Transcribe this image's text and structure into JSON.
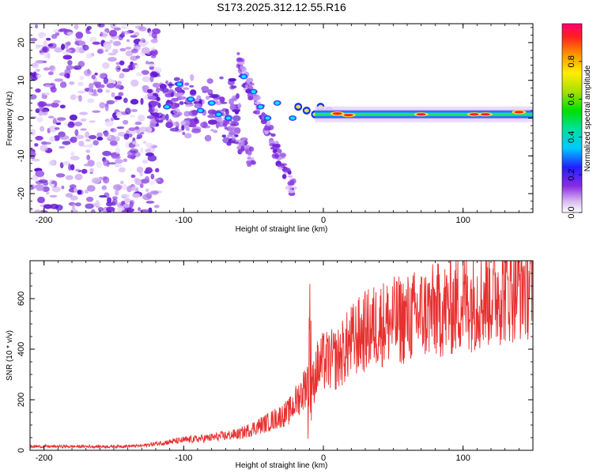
{
  "title": "S173.2025.312.12.55.R16",
  "chart_data": [
    {
      "type": "heatmap",
      "title": "S173.2025.312.12.55.R16",
      "xlabel": "Height of straight line (km)",
      "ylabel": "Frequency (Hz)",
      "xlim": [
        -210,
        150
      ],
      "ylim": [
        -25,
        25
      ],
      "xticks": [
        "-200",
        "-100",
        "0",
        "100"
      ],
      "yticks": [
        "-20",
        "-10",
        "0",
        "10",
        "20"
      ],
      "colorbar": {
        "label": "Normalized spectral amplitude",
        "range": [
          0,
          1
        ],
        "ticks": [
          "0.0",
          "0.2",
          "0.4",
          "0.6",
          "0.8"
        ]
      },
      "features": [
        {
          "name": "noise",
          "x_range": [
            -210,
            -125
          ],
          "freq_range": [
            -25,
            25
          ]
        },
        {
          "name": "clusters",
          "x_range": [
            -125,
            -20
          ],
          "freq_range": [
            -20,
            18
          ]
        },
        {
          "name": "dominant-band",
          "x_range": [
            -20,
            150
          ],
          "freq": 1
        }
      ]
    },
    {
      "type": "line",
      "xlabel": "Height of straight line (km)",
      "ylabel": "SNR (10 * v/v)",
      "xlim": [
        -210,
        150
      ],
      "ylim": [
        0,
        750
      ],
      "xticks": [
        "-200",
        "-100",
        "0",
        "100"
      ],
      "yticks": [
        "0",
        "200",
        "400",
        "600"
      ],
      "series": [
        {
          "name": "SNR",
          "color": "#e83030",
          "x": [
            -210,
            -180,
            -150,
            -130,
            -115,
            -100,
            -80,
            -60,
            -40,
            -25,
            -15,
            -10,
            -8,
            -5,
            0,
            10,
            20,
            30,
            40,
            50,
            60,
            70,
            80,
            90,
            100,
            110,
            120,
            130,
            140,
            150
          ],
          "y": [
            15,
            15,
            15,
            18,
            30,
            40,
            50,
            65,
            110,
            150,
            230,
            300,
            250,
            320,
            350,
            360,
            430,
            470,
            500,
            510,
            520,
            540,
            550,
            560,
            590,
            600,
            620,
            640,
            660,
            670
          ]
        }
      ]
    }
  ]
}
